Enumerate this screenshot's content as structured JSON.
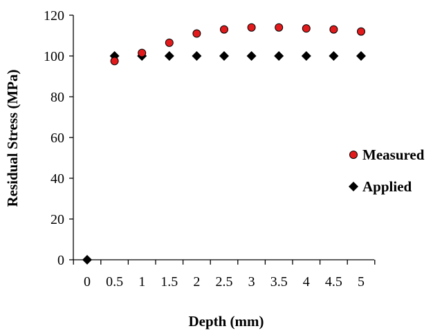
{
  "chart_data": {
    "type": "scatter",
    "title": "",
    "xlabel": "Depth (mm)",
    "ylabel": "Residual Stress (MPa)",
    "categories": [
      "0",
      "0.5",
      "1",
      "1.5",
      "2",
      "2.5",
      "3",
      "3.5",
      "4",
      "4.5",
      "5"
    ],
    "y_ticks": [
      "0",
      "20",
      "40",
      "60",
      "80",
      "100",
      "120"
    ],
    "ylim": [
      0,
      120
    ],
    "grid": false,
    "legend_position": "right",
    "series": [
      {
        "name": "Measured",
        "marker": "circle",
        "color": "#e31a1c",
        "x": [
          0.5,
          1,
          1.5,
          2,
          2.5,
          3,
          3.5,
          4,
          4.5,
          5
        ],
        "y": [
          97.5,
          101.5,
          106.5,
          111,
          113,
          114,
          114,
          113.5,
          113,
          112
        ]
      },
      {
        "name": "Applied",
        "marker": "diamond",
        "color": "#000000",
        "x": [
          0,
          0.5,
          1,
          1.5,
          2,
          2.5,
          3,
          3.5,
          4,
          4.5,
          5
        ],
        "y": [
          0,
          100,
          100,
          100,
          100,
          100,
          100,
          100,
          100,
          100,
          100
        ]
      }
    ]
  }
}
